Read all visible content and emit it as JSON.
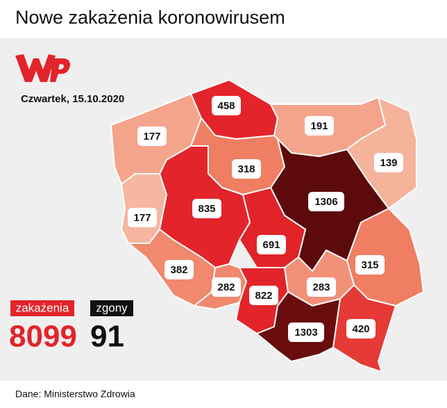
{
  "header": {
    "title": "Nowe zakażenia koronowirusem",
    "date": "Czwartek, 15.10.2020"
  },
  "regions": [
    {
      "value": 177,
      "color": "#f4a48b"
    },
    {
      "value": 458,
      "color": "#e3242b"
    },
    {
      "value": 191,
      "color": "#f4a48b"
    },
    {
      "value": 139,
      "color": "#f6b39c"
    },
    {
      "value": 318,
      "color": "#f07e62"
    },
    {
      "value": 1306,
      "color": "#5c0a0c"
    },
    {
      "value": 177,
      "color": "#f6b6a0"
    },
    {
      "value": 835,
      "color": "#e3242b"
    },
    {
      "value": 691,
      "color": "#e12428"
    },
    {
      "value": 315,
      "color": "#f07e62"
    },
    {
      "value": 382,
      "color": "#f0896d"
    },
    {
      "value": 282,
      "color": "#f0896d"
    },
    {
      "value": 822,
      "color": "#e3242b"
    },
    {
      "value": 283,
      "color": "#f29178"
    },
    {
      "value": 1303,
      "color": "#6a0d0f"
    },
    {
      "value": 420,
      "color": "#e53a35"
    }
  ],
  "totals": {
    "cases_label": "zakażenia",
    "cases": 8099,
    "deaths_label": "zgony",
    "deaths": 91
  },
  "source": "Dane: Ministerstwo Zdrowia"
}
